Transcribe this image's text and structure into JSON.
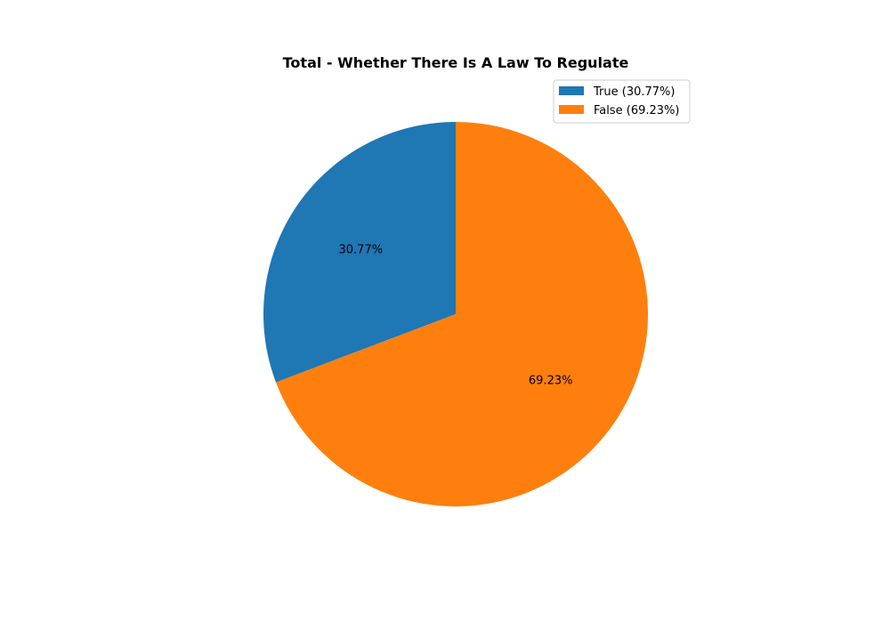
{
  "chart_data": {
    "type": "pie",
    "title": "Total - Whether There Is A Law To Regulate",
    "categories": [
      "True",
      "False"
    ],
    "values": [
      30.77,
      69.23
    ],
    "slice_labels": [
      "30.77%",
      "69.23%"
    ],
    "legend_entries": [
      "True (30.77%)",
      "False (69.23%)"
    ],
    "colors": [
      "#1f77b4",
      "#ff7f0e"
    ],
    "start_angle_deg": 90,
    "direction": "counterclockwise",
    "legend_position": "upper-right"
  }
}
